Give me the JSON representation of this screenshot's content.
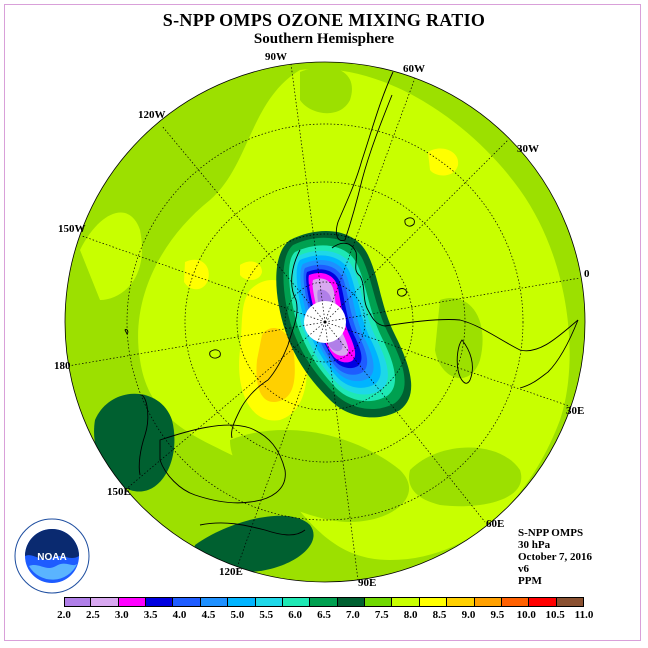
{
  "title": "S-NPP OMPS OZONE MIXING RATIO",
  "subtitle": "Southern Hemisphere",
  "longitude_labels": [
    {
      "id": "90w",
      "text": "90W"
    },
    {
      "id": "60w",
      "text": "60W"
    },
    {
      "id": "120w",
      "text": "120W"
    },
    {
      "id": "30w",
      "text": "30W"
    },
    {
      "id": "150w",
      "text": "150W"
    },
    {
      "id": "0",
      "text": "0"
    },
    {
      "id": "180",
      "text": "180"
    },
    {
      "id": "30e",
      "text": "30E"
    },
    {
      "id": "150e",
      "text": "150E"
    },
    {
      "id": "60e",
      "text": "60E"
    },
    {
      "id": "120e",
      "text": "120E"
    },
    {
      "id": "90e",
      "text": "90E"
    }
  ],
  "info": {
    "instrument": "S-NPP OMPS",
    "pressure": "30 hPa",
    "date": "October 7, 2016",
    "version": "v6",
    "units": "PPM"
  },
  "logo": {
    "text": "NOAA"
  },
  "colorbar": {
    "ticks": [
      "2.0",
      "2.5",
      "3.0",
      "3.5",
      "4.0",
      "4.5",
      "5.0",
      "5.5",
      "6.0",
      "6.5",
      "7.0",
      "7.5",
      "8.0",
      "8.5",
      "9.0",
      "9.5",
      "10.0",
      "10.5",
      "11.0"
    ],
    "colors": [
      "#b07fe8",
      "#d8a8f0",
      "#ff00ff",
      "#0000e0",
      "#1e5cff",
      "#1e90ff",
      "#00b4ff",
      "#1ed8e8",
      "#1ee8b4",
      "#00a050",
      "#006030",
      "#70d800",
      "#c8ff00",
      "#ffff00",
      "#ffd000",
      "#ffa000",
      "#ff6000",
      "#ff0000",
      "#8a5030"
    ]
  }
}
